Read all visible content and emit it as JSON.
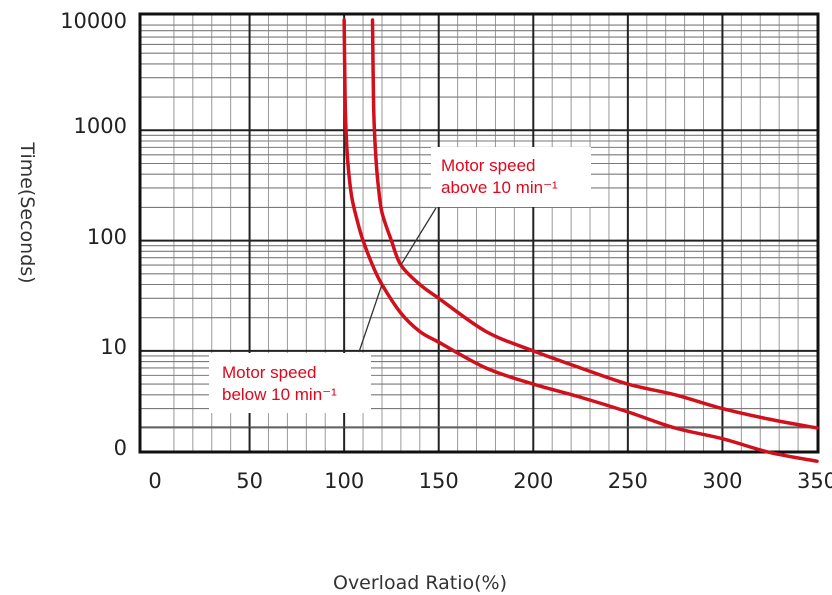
{
  "chart_data": {
    "type": "line",
    "xlabel": "Overload Ratio(%)",
    "ylabel": "Time(Seconds)",
    "xlim": [
      0,
      350
    ],
    "y_scale": "log",
    "x_ticks": [
      "0",
      "50",
      "100",
      "150",
      "200",
      "250",
      "300",
      "350"
    ],
    "x_tick_values": [
      0,
      50,
      100,
      150,
      200,
      250,
      300,
      350
    ],
    "y_ticks": [
      "0",
      "10",
      "100",
      "1000",
      "10000"
    ],
    "grid": true,
    "line_color": "#d0101c",
    "series": [
      {
        "name": "Motor speed below 10 min⁻¹",
        "name_lines": [
          "Motor speed",
          "below 10 min⁻¹"
        ],
        "x": [
          100,
          100.5,
          101,
          102,
          104,
          107,
          110,
          115,
          120,
          130,
          140,
          150,
          175,
          200,
          225,
          250,
          275,
          300,
          325,
          350
        ],
        "y": [
          10000,
          2000,
          1000,
          500,
          250,
          150,
          100,
          60,
          40,
          22,
          15,
          12,
          7,
          5,
          3.8,
          2.8,
          2.0,
          1.6,
          1.2,
          1.0
        ]
      },
      {
        "name": "Motor speed above 10 min⁻¹",
        "name_lines": [
          "Motor speed",
          "above 10 min⁻¹"
        ],
        "x": [
          115,
          115.5,
          116,
          117,
          118,
          120,
          125,
          130,
          140,
          150,
          175,
          200,
          225,
          250,
          275,
          300,
          325,
          350
        ],
        "y": [
          10000,
          2000,
          1000,
          500,
          320,
          180,
          100,
          60,
          40,
          30,
          15,
          10,
          7,
          5,
          4,
          3,
          2.4,
          2.0
        ]
      }
    ]
  }
}
